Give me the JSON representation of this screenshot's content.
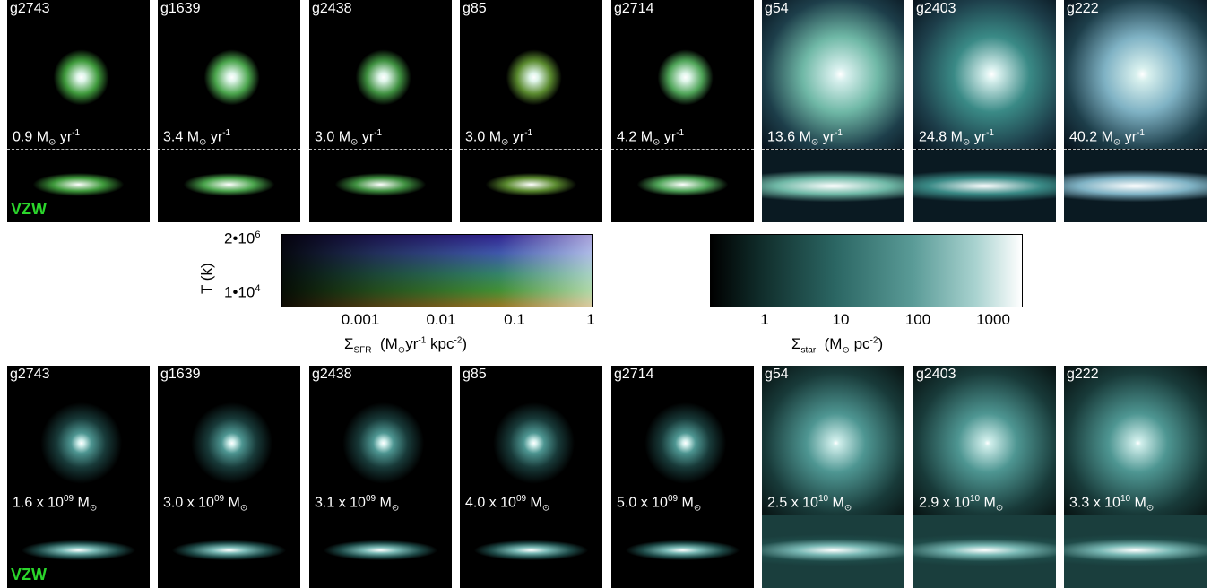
{
  "sfr_row": {
    "tag": "VZW",
    "tag_color": "#2bd62b",
    "galaxies": [
      {
        "name": "g2743",
        "value": "0.9",
        "tint": "#3f9a3c"
      },
      {
        "name": "g1639",
        "value": "3.4",
        "tint": "#4aa44c"
      },
      {
        "name": "g2438",
        "value": "3.0",
        "tint": "#3f9040"
      },
      {
        "name": "g85",
        "value": "3.0",
        "tint": "#5a8a2f"
      },
      {
        "name": "g2714",
        "value": "4.2",
        "tint": "#4fa458"
      },
      {
        "name": "g54",
        "value": "13.6",
        "tint": "#6fb8a6"
      },
      {
        "name": "g2403",
        "value": "24.8",
        "tint": "#3a8a86"
      },
      {
        "name": "g222",
        "value": "40.2",
        "tint": "#7fb2c4"
      }
    ]
  },
  "mass_row": {
    "tag": "VZW",
    "tag_color": "#2bd62b",
    "galaxies": [
      {
        "name": "g2743",
        "mantissa": "1.6",
        "exponent": "09"
      },
      {
        "name": "g1639",
        "mantissa": "3.0",
        "exponent": "09"
      },
      {
        "name": "g2438",
        "mantissa": "3.1",
        "exponent": "09"
      },
      {
        "name": "g85",
        "mantissa": "4.0",
        "exponent": "09"
      },
      {
        "name": "g2714",
        "mantissa": "5.0",
        "exponent": "09"
      },
      {
        "name": "g54",
        "mantissa": "2.5",
        "exponent": "10"
      },
      {
        "name": "g2403",
        "mantissa": "2.9",
        "exponent": "10"
      },
      {
        "name": "g222",
        "mantissa": "3.3",
        "exponent": "10"
      }
    ]
  },
  "sfr_colorbar": {
    "y_axis_label": "T (k)",
    "y_ticks": [
      {
        "mantissa": "2•10",
        "exp": "6"
      },
      {
        "mantissa": "1•10",
        "exp": "4"
      }
    ],
    "x_ticks": [
      "0.001",
      "0.01",
      "0.1",
      "1"
    ],
    "x_label_symbol": "Σ",
    "x_label_sub": "SFR",
    "x_label_units": "(M",
    "x_label_units_rest": "yr",
    "x_label_exp1": "-1",
    "x_label_kpc": " kpc",
    "x_label_exp2": "-2",
    "x_label_close": ")"
  },
  "star_colorbar": {
    "x_ticks": [
      "1",
      "10",
      "100",
      "1000"
    ],
    "x_label_symbol": "Σ",
    "x_label_sub": "star",
    "x_label_units": "(M",
    "x_label_pc": " pc",
    "x_label_exp": "-2",
    "x_label_close": ")"
  },
  "units": {
    "sfr_prefix": " M",
    "sun": "⊙",
    "sfr_suffix": " yr",
    "sfr_exp": "-1",
    "mass_times": " x 10",
    "mass_msun": " M"
  }
}
